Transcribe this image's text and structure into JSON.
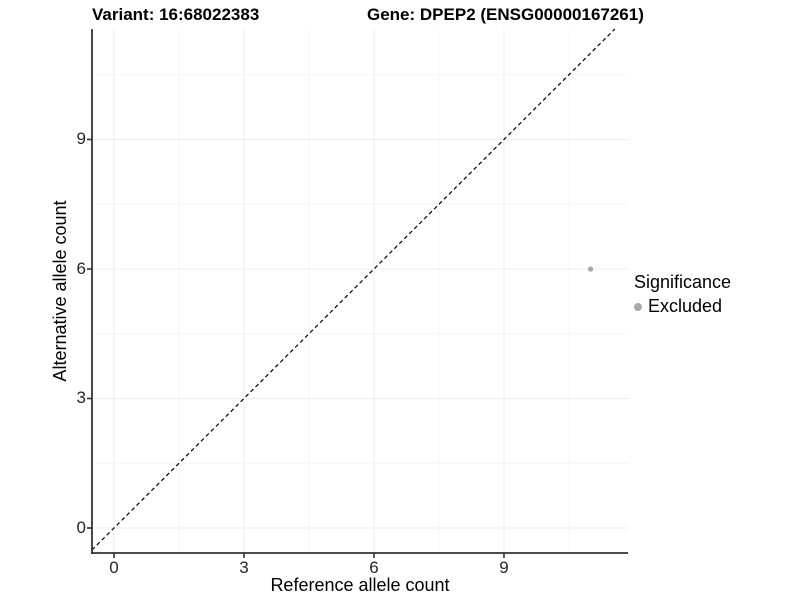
{
  "chart_data": {
    "type": "scatter",
    "titles": [
      "Variant: 16:68022383",
      "Gene: DPEP2 (ENSG00000167261)"
    ],
    "xlabel": "Reference allele count",
    "ylabel": "Alternative allele count",
    "xlim": [
      -0.51,
      11.87
    ],
    "ylim": [
      -0.58,
      11.56
    ],
    "x_ticks": [
      0,
      3,
      6,
      9
    ],
    "y_ticks": [
      0,
      3,
      6,
      9
    ],
    "x_minor_ticks": [
      1.5,
      4.5,
      7.5,
      10.5
    ],
    "y_minor_ticks": [
      1.5,
      4.5,
      7.5,
      10.5
    ],
    "grid": "major and minor gridlines on, white panel",
    "series": [
      {
        "name": "Excluded",
        "color": "#a8a8a8",
        "points": [
          {
            "x": 11,
            "y": 6
          }
        ]
      }
    ],
    "reference_line": {
      "kind": "identity y=x",
      "style": "dashed",
      "color": "#000000"
    },
    "legend": {
      "title": "Significance",
      "position": "right",
      "items": [
        {
          "label": "Excluded",
          "color": "#a8a8a8"
        }
      ]
    }
  },
  "colors": {
    "axis_line": "#333333",
    "tick_label": "#262626",
    "major_gridline": "#ececec",
    "minor_gridline": "#f6f6f6",
    "background": "#ffffff"
  }
}
